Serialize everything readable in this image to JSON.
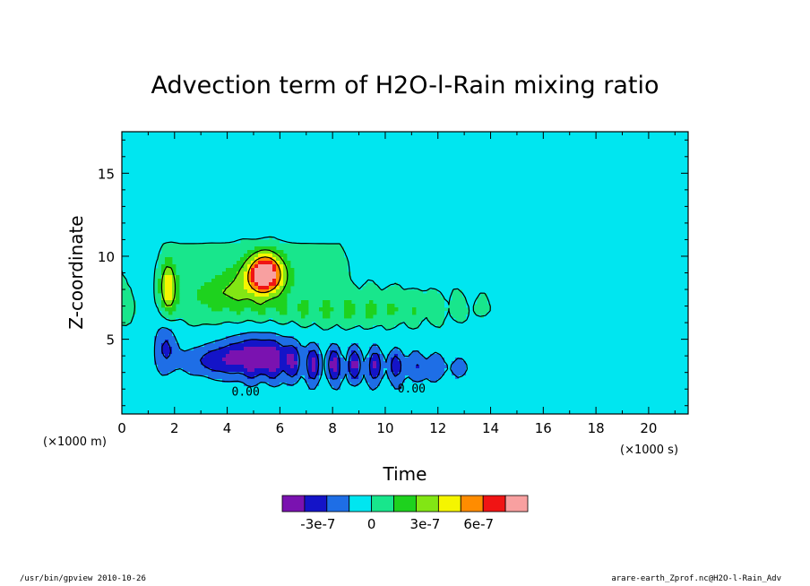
{
  "chart_data": {
    "type": "heatmap",
    "title": "Advection term of H2O-l-Rain mixing ratio",
    "xlabel": "Time",
    "ylabel": "Z-coordinate",
    "x_unit": "(×1000 s)",
    "y_unit": "(×1000 m)",
    "x_range": [
      0,
      21.5
    ],
    "y_range": [
      0.5,
      17.5
    ],
    "x_ticks": [
      0,
      2,
      4,
      6,
      8,
      10,
      12,
      14,
      16,
      18,
      20
    ],
    "x_tick_labels": [
      "0",
      "2",
      "4",
      "6",
      "8",
      "10",
      "12",
      "14",
      "16",
      "18",
      "20"
    ],
    "y_ticks": [
      5,
      10,
      15
    ],
    "y_tick_labels": [
      "5",
      "10",
      "15"
    ],
    "colorbar": {
      "colors": [
        "#7a12b0",
        "#1414c8",
        "#1e6ee6",
        "#00e6f0",
        "#18e68c",
        "#1ed21e",
        "#82e614",
        "#f5f500",
        "#ff8c00",
        "#f01414",
        "#f8a0a0"
      ],
      "boundaries": [
        -3.75e-07,
        -2.5e-07,
        -1.25e-07,
        0,
        1.25e-07,
        2.5e-07,
        3.75e-07,
        5e-07,
        6.25e-07,
        7.5e-07
      ],
      "tick_values": [
        -3e-07,
        0,
        3e-07,
        6e-07
      ],
      "tick_labels": [
        "-3e-7",
        "0",
        "3e-7",
        "6e-7"
      ]
    },
    "contour_labels": [
      {
        "text": "0.00",
        "x": 4.7,
        "y": 1.6
      },
      {
        "text": "0.00",
        "x": 11.0,
        "y": 1.8
      }
    ],
    "features": [
      {
        "name": "cloud-top region (weak negative)",
        "t": [
          1.8,
          21.5
        ],
        "z": [
          10.5,
          15.5
        ],
        "sign": "negative"
      },
      {
        "name": "early updraft maximum",
        "t": 1.75,
        "z": 8.2,
        "value": 5e-07
      },
      {
        "name": "main positive maximum",
        "t": 5.4,
        "z": 9.0,
        "value": 8e-07
      },
      {
        "name": "main negative minimum",
        "t": 5.2,
        "z": 4.0,
        "value": -4e-07
      }
    ]
  },
  "footer": {
    "left": "/usr/bin/gpview   2010-10-26",
    "right": "arare-earth_Zprof.nc@H2O-l-Rain_Adv"
  }
}
